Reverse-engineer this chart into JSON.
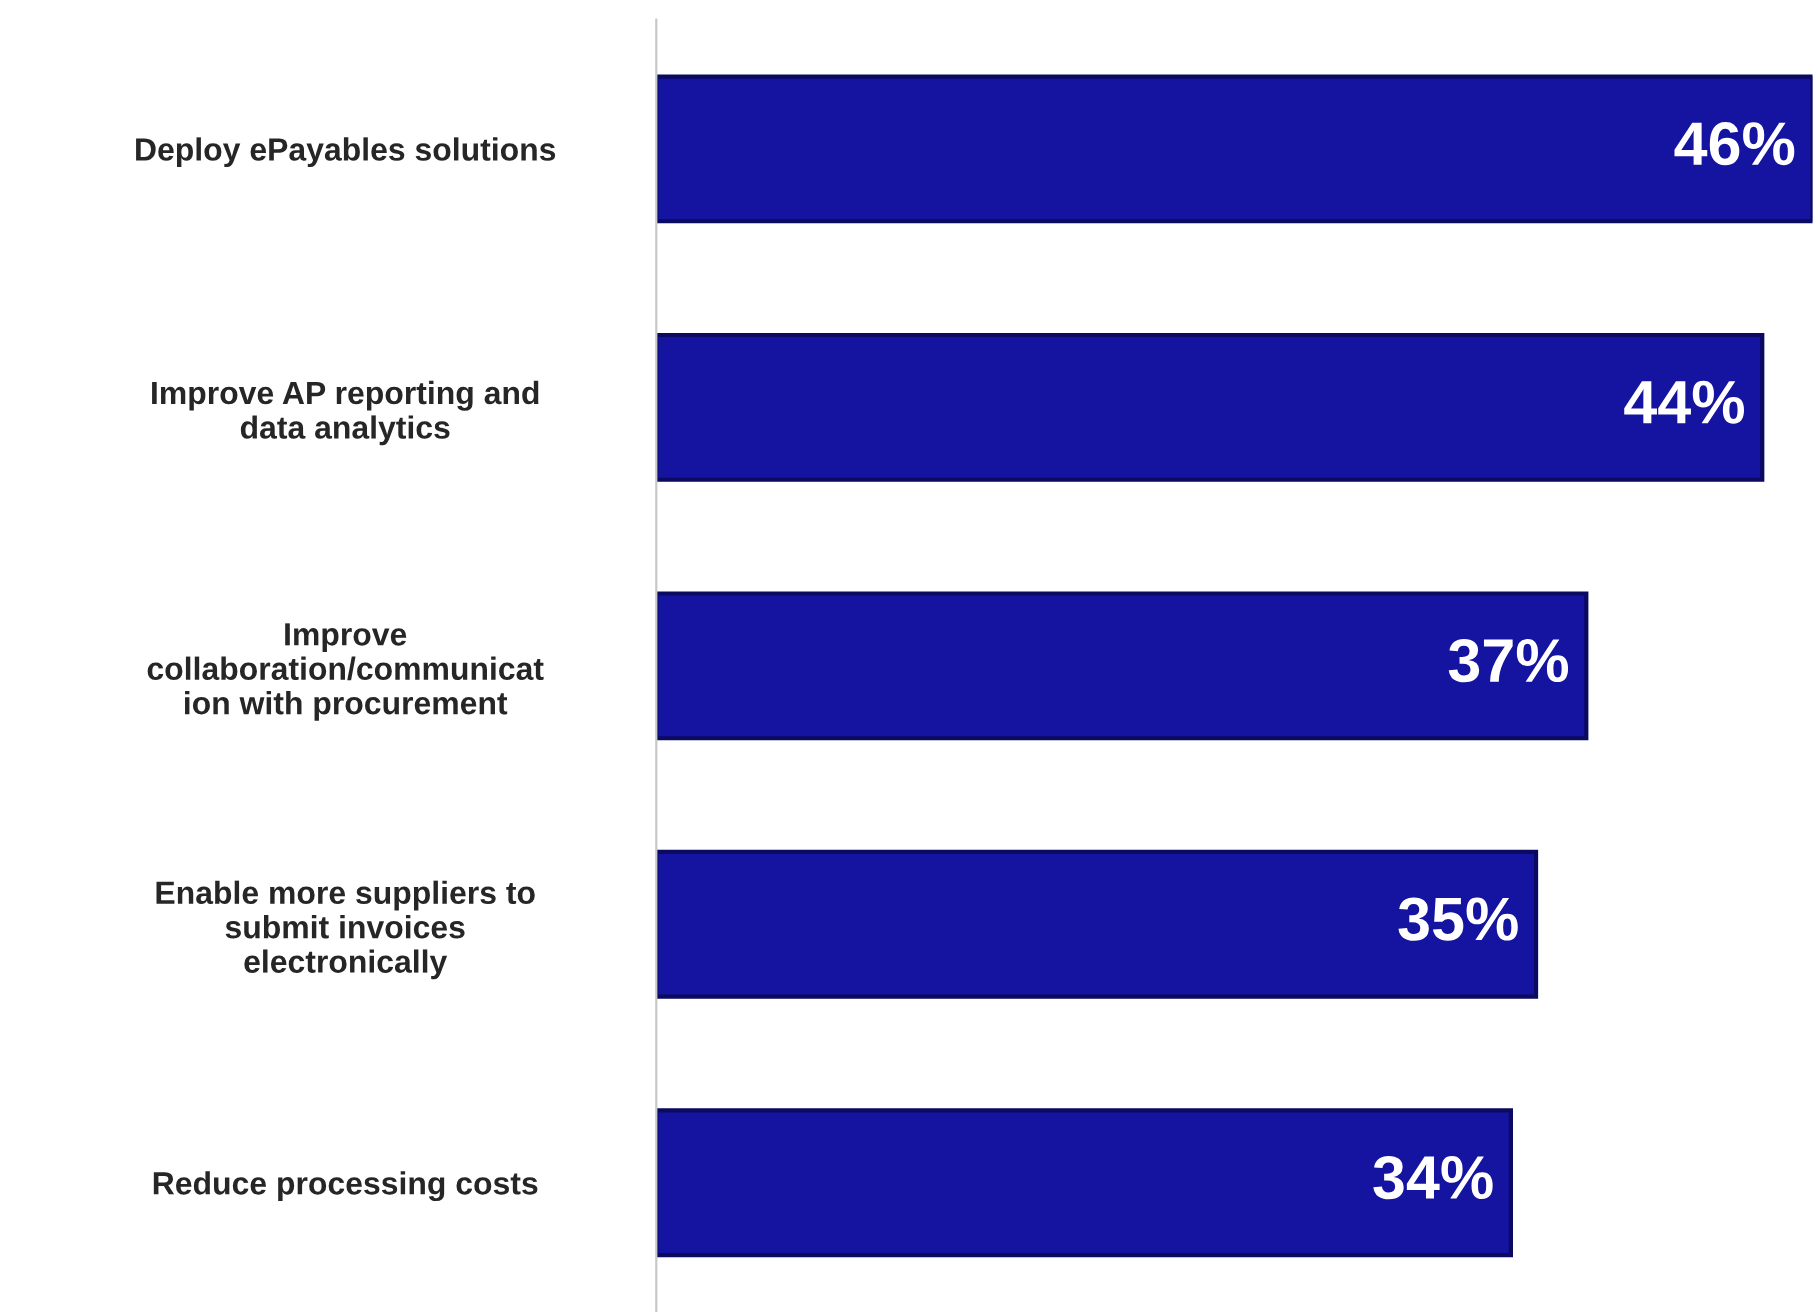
{
  "chart_data": {
    "type": "bar",
    "orientation": "horizontal",
    "categories": [
      "Deploy ePayables solutions",
      "Improve AP reporting and\ndata analytics",
      "Improve\ncollaboration/communicat\nion with procurement",
      "Enable more suppliers to\nsubmit invoices\nelectronically",
      "Reduce processing costs"
    ],
    "values": [
      46,
      44,
      37,
      35,
      34
    ],
    "color": "#1414a0",
    "value_labels": [
      "46%",
      "44%",
      "37%",
      "35%",
      "34%"
    ],
    "xlim": [
      0,
      46
    ],
    "tick_labels": "y",
    "grid": false,
    "legend": false
  }
}
